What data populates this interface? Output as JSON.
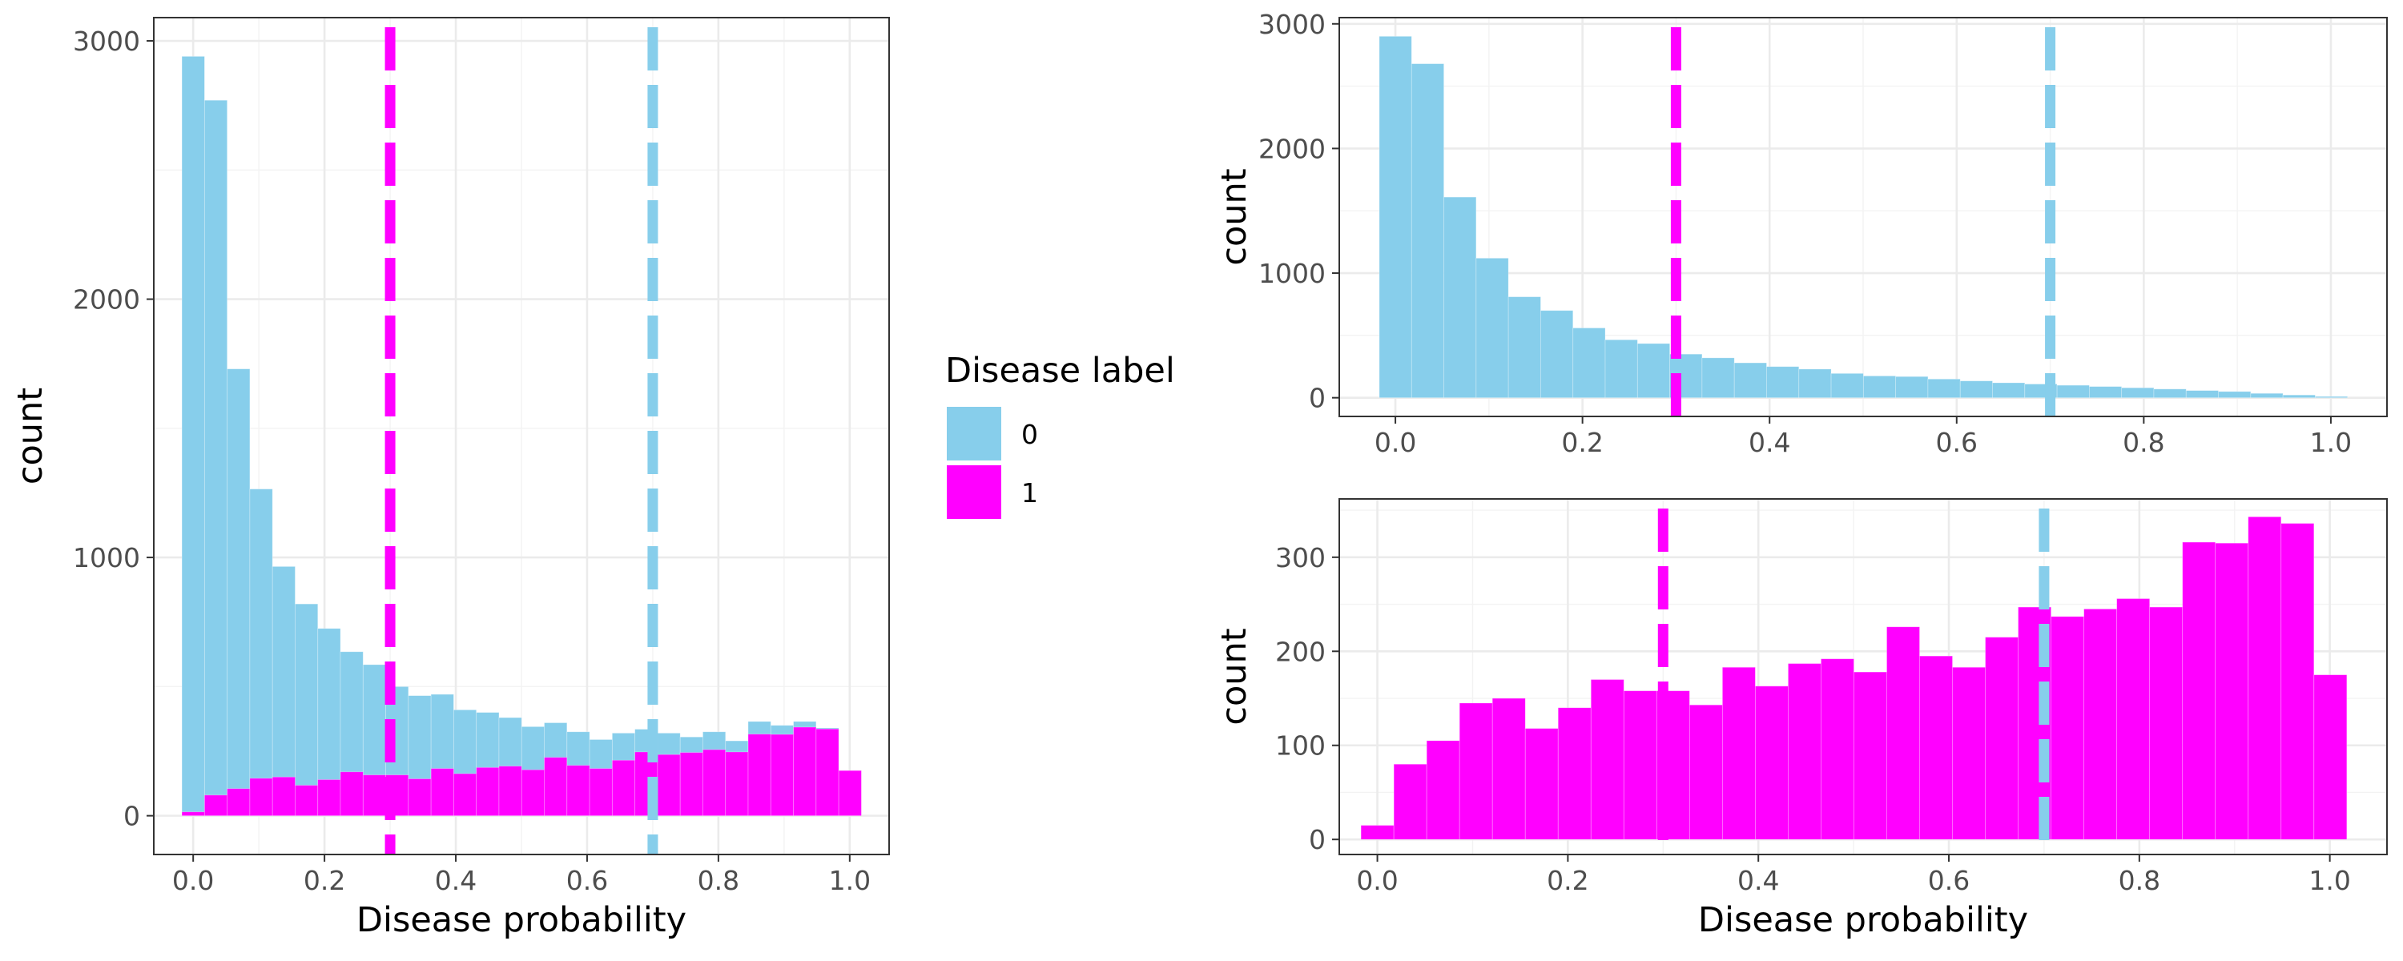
{
  "colors": {
    "label_0": "#87CEEB",
    "label_1": "#FF00FF"
  },
  "legend": {
    "title": "Disease label",
    "items": [
      {
        "label": "0",
        "color": "#87CEEB"
      },
      {
        "label": "1",
        "color": "#FF00FF"
      }
    ]
  },
  "chart_data": [
    {
      "id": "left",
      "type": "bar",
      "subtype": "histogram-overlay",
      "title": "",
      "xlabel": "Disease probability",
      "ylabel": "count",
      "xlim": [
        -0.06,
        1.06
      ],
      "ylim": [
        -150,
        3090
      ],
      "xticks": [
        0.0,
        0.2,
        0.4,
        0.6,
        0.8,
        1.0
      ],
      "xtick_labels": [
        "0.0",
        "0.2",
        "0.4",
        "0.6",
        "0.8",
        "1.0"
      ],
      "yticks": [
        0,
        1000,
        2000,
        3000
      ],
      "ytick_labels": [
        "0",
        "1000",
        "2000",
        "3000"
      ],
      "bin_width": 0.0345,
      "bin_start": -0.0172,
      "grid": true,
      "series": [
        {
          "name": "0",
          "color": "#87CEEB",
          "values": [
            2940,
            2770,
            1730,
            1265,
            965,
            820,
            725,
            635,
            585,
            500,
            465,
            470,
            410,
            400,
            380,
            345,
            360,
            325,
            295,
            320,
            335,
            320,
            305,
            325,
            290,
            365,
            350,
            365,
            340,
            0
          ]
        },
        {
          "name": "1",
          "color": "#FF00FF",
          "values": [
            15,
            80,
            105,
            145,
            150,
            118,
            140,
            170,
            158,
            158,
            143,
            183,
            163,
            187,
            192,
            178,
            226,
            195,
            183,
            215,
            247,
            237,
            245,
            256,
            247,
            316,
            315,
            343,
            336,
            175
          ]
        }
      ],
      "reference_lines": [
        {
          "x": 0.3,
          "color": "#FF00FF",
          "style": "dashed"
        },
        {
          "x": 0.7,
          "color": "#87CEEB",
          "style": "dashed"
        }
      ]
    },
    {
      "id": "top-right",
      "type": "bar",
      "subtype": "histogram",
      "title": "",
      "xlabel": "",
      "ylabel": "count",
      "xlim": [
        -0.06,
        1.06
      ],
      "ylim": [
        -150,
        3050
      ],
      "xticks": [
        0.0,
        0.2,
        0.4,
        0.6,
        0.8,
        1.0
      ],
      "xtick_labels": [
        "0.0",
        "0.2",
        "0.4",
        "0.6",
        "0.8",
        "1.0"
      ],
      "yticks": [
        0,
        1000,
        2000,
        3000
      ],
      "ytick_labels": [
        "0",
        "1000",
        "2000",
        "3000"
      ],
      "bin_width": 0.0345,
      "bin_start": -0.0172,
      "grid": true,
      "series": [
        {
          "name": "0",
          "color": "#87CEEB",
          "values": [
            2900,
            2680,
            1610,
            1120,
            810,
            700,
            560,
            465,
            435,
            350,
            320,
            280,
            250,
            230,
            195,
            175,
            170,
            150,
            135,
            120,
            110,
            100,
            90,
            80,
            70,
            58,
            50,
            35,
            22,
            10
          ]
        }
      ],
      "reference_lines": [
        {
          "x": 0.3,
          "color": "#FF00FF",
          "style": "dashed"
        },
        {
          "x": 0.7,
          "color": "#87CEEB",
          "style": "dashed"
        }
      ]
    },
    {
      "id": "bottom-right",
      "type": "bar",
      "subtype": "histogram",
      "title": "",
      "xlabel": "Disease probability",
      "ylabel": "count",
      "xlim": [
        -0.04,
        1.06
      ],
      "ylim": [
        -16,
        362
      ],
      "xticks": [
        0.0,
        0.2,
        0.4,
        0.6,
        0.8,
        1.0
      ],
      "xtick_labels": [
        "0.0",
        "0.2",
        "0.4",
        "0.6",
        "0.8",
        "1.0"
      ],
      "yticks": [
        0,
        100,
        200,
        300
      ],
      "ytick_labels": [
        "0",
        "100",
        "200",
        "300"
      ],
      "bin_width": 0.0345,
      "bin_start": -0.0172,
      "grid": true,
      "series": [
        {
          "name": "1",
          "color": "#FF00FF",
          "values": [
            15,
            80,
            105,
            145,
            150,
            118,
            140,
            170,
            158,
            158,
            143,
            183,
            163,
            187,
            192,
            178,
            226,
            195,
            183,
            215,
            247,
            237,
            245,
            256,
            247,
            316,
            315,
            343,
            336,
            175
          ]
        }
      ],
      "reference_lines": [
        {
          "x": 0.3,
          "color": "#FF00FF",
          "style": "dashed"
        },
        {
          "x": 0.7,
          "color": "#87CEEB",
          "style": "dashed"
        }
      ]
    }
  ]
}
